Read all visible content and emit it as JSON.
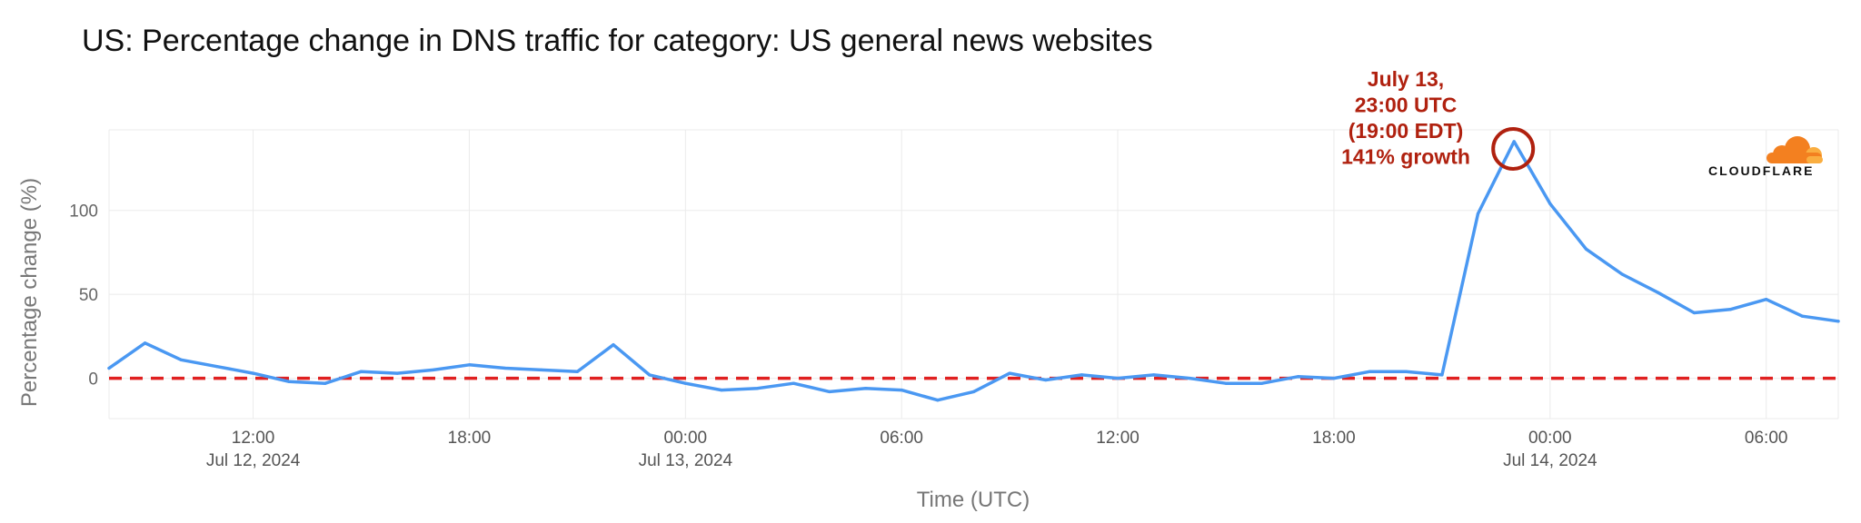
{
  "chart_data": {
    "type": "line",
    "title": "US: Percentage change in DNS traffic for category: US general news websites",
    "xlabel": "Time (UTC)",
    "ylabel": "Percentage change (%)",
    "x_start": "2024-07-12T08:00Z",
    "x_end": "2024-07-14T08:00Z",
    "ylim": [
      -24,
      148
    ],
    "grid": true,
    "y_ticks": [
      0,
      50,
      100
    ],
    "x_ticks": [
      {
        "time": "2024-07-12T12:00Z",
        "label": "12:00",
        "date": "Jul 12, 2024"
      },
      {
        "time": "2024-07-12T18:00Z",
        "label": "18:00",
        "date": ""
      },
      {
        "time": "2024-07-13T00:00Z",
        "label": "00:00",
        "date": "Jul 13, 2024"
      },
      {
        "time": "2024-07-13T06:00Z",
        "label": "06:00",
        "date": ""
      },
      {
        "time": "2024-07-13T12:00Z",
        "label": "12:00",
        "date": ""
      },
      {
        "time": "2024-07-13T18:00Z",
        "label": "18:00",
        "date": ""
      },
      {
        "time": "2024-07-14T00:00Z",
        "label": "00:00",
        "date": "Jul 14, 2024"
      },
      {
        "time": "2024-07-14T06:00Z",
        "label": "06:00",
        "date": ""
      }
    ],
    "series": [
      {
        "color": "#4a98f2",
        "points": [
          {
            "x": "2024-07-12T08:00Z",
            "y": 6
          },
          {
            "x": "2024-07-12T09:00Z",
            "y": 21
          },
          {
            "x": "2024-07-12T10:00Z",
            "y": 11
          },
          {
            "x": "2024-07-12T11:00Z",
            "y": 7
          },
          {
            "x": "2024-07-12T12:00Z",
            "y": 3
          },
          {
            "x": "2024-07-12T13:00Z",
            "y": -2
          },
          {
            "x": "2024-07-12T14:00Z",
            "y": -3
          },
          {
            "x": "2024-07-12T15:00Z",
            "y": 4
          },
          {
            "x": "2024-07-12T16:00Z",
            "y": 3
          },
          {
            "x": "2024-07-12T17:00Z",
            "y": 5
          },
          {
            "x": "2024-07-12T18:00Z",
            "y": 8
          },
          {
            "x": "2024-07-12T19:00Z",
            "y": 6
          },
          {
            "x": "2024-07-12T20:00Z",
            "y": 5
          },
          {
            "x": "2024-07-12T21:00Z",
            "y": 4
          },
          {
            "x": "2024-07-12T22:00Z",
            "y": 20
          },
          {
            "x": "2024-07-12T23:00Z",
            "y": 2
          },
          {
            "x": "2024-07-13T00:00Z",
            "y": -3
          },
          {
            "x": "2024-07-13T01:00Z",
            "y": -7
          },
          {
            "x": "2024-07-13T02:00Z",
            "y": -6
          },
          {
            "x": "2024-07-13T03:00Z",
            "y": -3
          },
          {
            "x": "2024-07-13T04:00Z",
            "y": -8
          },
          {
            "x": "2024-07-13T05:00Z",
            "y": -6
          },
          {
            "x": "2024-07-13T06:00Z",
            "y": -7
          },
          {
            "x": "2024-07-13T07:00Z",
            "y": -13
          },
          {
            "x": "2024-07-13T08:00Z",
            "y": -8
          },
          {
            "x": "2024-07-13T09:00Z",
            "y": 3
          },
          {
            "x": "2024-07-13T10:00Z",
            "y": -1
          },
          {
            "x": "2024-07-13T11:00Z",
            "y": 2
          },
          {
            "x": "2024-07-13T12:00Z",
            "y": 0
          },
          {
            "x": "2024-07-13T13:00Z",
            "y": 2
          },
          {
            "x": "2024-07-13T14:00Z",
            "y": 0
          },
          {
            "x": "2024-07-13T15:00Z",
            "y": -3
          },
          {
            "x": "2024-07-13T16:00Z",
            "y": -3
          },
          {
            "x": "2024-07-13T17:00Z",
            "y": 1
          },
          {
            "x": "2024-07-13T18:00Z",
            "y": 0
          },
          {
            "x": "2024-07-13T19:00Z",
            "y": 4
          },
          {
            "x": "2024-07-13T20:00Z",
            "y": 4
          },
          {
            "x": "2024-07-13T21:00Z",
            "y": 2
          },
          {
            "x": "2024-07-13T22:00Z",
            "y": 98
          },
          {
            "x": "2024-07-13T23:00Z",
            "y": 141
          },
          {
            "x": "2024-07-14T00:00Z",
            "y": 104
          },
          {
            "x": "2024-07-14T01:00Z",
            "y": 77
          },
          {
            "x": "2024-07-14T02:00Z",
            "y": 62
          },
          {
            "x": "2024-07-14T03:00Z",
            "y": 51
          },
          {
            "x": "2024-07-14T04:00Z",
            "y": 39
          },
          {
            "x": "2024-07-14T05:00Z",
            "y": 41
          },
          {
            "x": "2024-07-14T06:00Z",
            "y": 47
          },
          {
            "x": "2024-07-14T07:00Z",
            "y": 37
          },
          {
            "x": "2024-07-14T08:00Z",
            "y": 34
          }
        ]
      }
    ],
    "reference_line": {
      "y": 0,
      "color": "#e02020",
      "style": "dashed"
    },
    "annotation": {
      "x": "2024-07-13T23:00Z",
      "y": 141,
      "lines": [
        "July 13,",
        "23:00 UTC",
        "(19:00 EDT)",
        "141% growth"
      ],
      "color": "#b0210f"
    }
  },
  "logo": {
    "text": "CLOUDFLARE",
    "colors": {
      "primary": "#f38020",
      "secondary": "#faae40"
    }
  }
}
